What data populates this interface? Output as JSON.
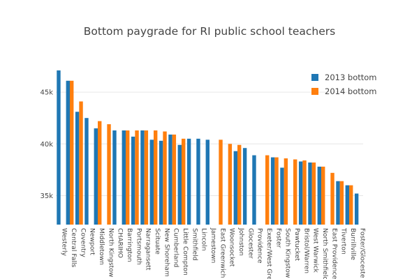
{
  "chart_data": {
    "type": "bar",
    "title": "Bottom paygrade for RI public school teachers",
    "xlabel": "",
    "ylabel": "",
    "ylim": [
      32200,
      47500
    ],
    "yticks": [
      35000,
      40000,
      45000
    ],
    "ytick_labels": [
      "35k",
      "40k",
      "45k"
    ],
    "grid": true,
    "legend_position": "top-right",
    "categories": [
      "Westerly",
      "Central Falls",
      "Coventry",
      "Newport",
      "Middletown",
      "North Kingstown",
      "CHARIHO",
      "Barrington",
      "Portsmouth",
      "Narragansett",
      "Scituate",
      "New Shoreham",
      "Cumberland",
      "Little Compton",
      "Smithfield",
      "Lincoln",
      "Jamestown",
      "East Greenwich",
      "Woonsocket",
      "Johnston",
      "Glocester",
      "Providence",
      "Exeter/West Greenwich",
      "Foster",
      "South Kingstown",
      "Pawtucket",
      "Bristol/Warren",
      "West Warwick",
      "North Smithfield",
      "East Providence",
      "Tiverton",
      "Burrillville",
      "Foster/Glocester"
    ],
    "category_labels_shown": [
      "Westerly",
      "Central Falls",
      "Coventry",
      "Newport",
      "Middletown",
      "North Kingstow",
      "CHARIHO",
      "Barrington",
      "Portsmouth",
      "Narragansett",
      "Scituate",
      "New Shoreham",
      "Cumberland",
      "Little Compton",
      "Smithfield",
      "Lincoln",
      "Jamestown",
      "East Greenwich",
      "Woonsocket",
      "Johnston",
      "Glocester",
      "Providence",
      "Exeter/West Gre",
      "Foster",
      "South Kingstow",
      "Pawtucket",
      "Bristol/Warren",
      "West Warwick",
      "North Smithfielc",
      "East Providence",
      "Tiverton",
      "Burrillville",
      "Foster/Gloceste"
    ],
    "series": [
      {
        "name": "2013 bottom",
        "color": "#1f77b4",
        "values": [
          47100,
          46100,
          43100,
          42500,
          41500,
          null,
          41300,
          41300,
          40700,
          41300,
          40400,
          40300,
          40900,
          39900,
          40500,
          40500,
          40400,
          null,
          null,
          39300,
          39600,
          38900,
          null,
          38700,
          37700,
          null,
          38300,
          38200,
          37800,
          null,
          36400,
          36000,
          35200
        ]
      },
      {
        "name": "2014 bottom",
        "color": "#ff7f0e",
        "values": [
          null,
          46100,
          44100,
          null,
          42200,
          41900,
          null,
          41300,
          41300,
          41300,
          41300,
          41200,
          40900,
          40500,
          null,
          null,
          null,
          40400,
          40000,
          39900,
          null,
          null,
          38900,
          38700,
          38600,
          38500,
          38400,
          38200,
          37800,
          37200,
          36400,
          36000,
          null
        ]
      }
    ]
  }
}
